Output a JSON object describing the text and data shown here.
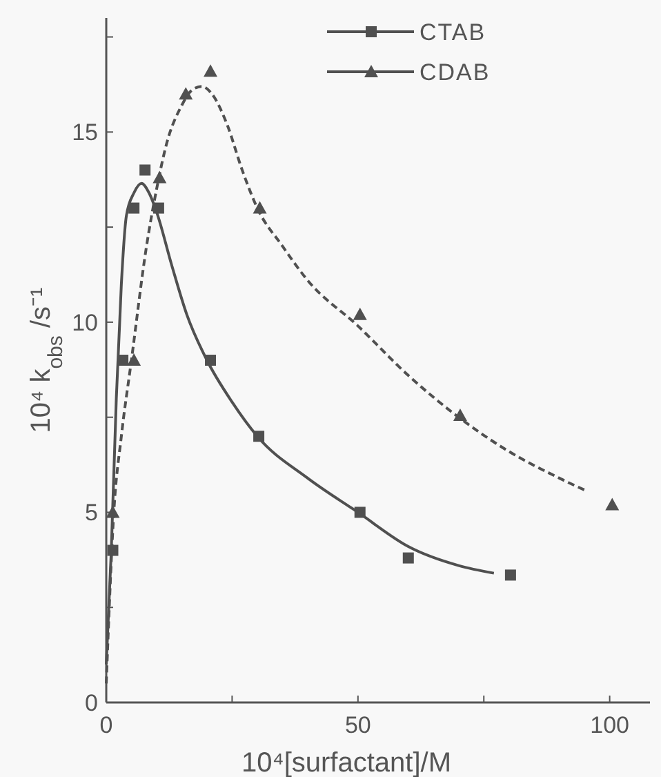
{
  "chart_data": {
    "type": "scatter",
    "xlabel": "10⁴[surfactant]/M",
    "ylabel": "10⁴ k$_{obs}$ /s⁻¹",
    "xlim": [
      0,
      108
    ],
    "ylim": [
      0,
      18
    ],
    "xticks": [
      0,
      {
        "value": 25,
        "label": null
      },
      50,
      {
        "value": 75,
        "label": null
      },
      100
    ],
    "yticks": [
      0,
      {
        "value": 2.5,
        "label": null
      },
      5,
      {
        "value": 7.5,
        "label": null
      },
      10,
      {
        "value": 12.5,
        "label": null
      },
      15,
      {
        "value": 17.5,
        "label": null
      }
    ],
    "grid": false,
    "legend": "top right",
    "series": [
      {
        "name": "CTAB",
        "marker": "square",
        "color": "#505050",
        "x": [
          1.3,
          3.3,
          5.5,
          7.7,
          10.4,
          20.7,
          30.3,
          50.4,
          60,
          80.3
        ],
        "values": [
          4.0,
          9.0,
          13.0,
          14.0,
          13.0,
          9.0,
          7.0,
          5.0,
          3.8,
          3.35
        ]
      },
      {
        "name": "CDAB",
        "marker": "triangle",
        "color": "#505050",
        "x": [
          1.3,
          5.5,
          10.6,
          15.8,
          20.7,
          30.5,
          50.4,
          70.3,
          100.5
        ],
        "values": [
          5.0,
          9.0,
          13.8,
          16.0,
          16.6,
          13.0,
          10.2,
          7.55,
          5.2
        ]
      },
      {
        "type": "line",
        "marker": "none",
        "line_style": "solid",
        "color": "#505050",
        "x": [
          0,
          1,
          2,
          3,
          4,
          5.5,
          7,
          8.5,
          10,
          13,
          16,
          20,
          25,
          30,
          40,
          50,
          60,
          70,
          77
        ],
        "values": [
          1,
          4,
          8,
          11,
          12.8,
          13.4,
          13.65,
          13.4,
          12.9,
          11.5,
          10.2,
          9,
          7.9,
          7.0,
          5.9,
          5.0,
          4.1,
          3.6,
          3.4
        ]
      },
      {
        "type": "line",
        "marker": "none",
        "line_style": "dashed",
        "color": "#505050",
        "x": [
          0,
          1.5,
          3,
          5,
          8,
          10,
          12,
          15,
          17,
          19,
          21,
          24,
          27,
          30,
          35,
          40,
          50,
          60,
          70,
          80,
          90,
          95.6
        ],
        "values": [
          0.5,
          5,
          7,
          9,
          12,
          13.5,
          14.7,
          15.7,
          16.1,
          16.2,
          16.0,
          15.2,
          14.0,
          13.0,
          12.0,
          11.1,
          9.9,
          8.6,
          7.5,
          6.6,
          5.9,
          5.55
        ]
      }
    ]
  }
}
